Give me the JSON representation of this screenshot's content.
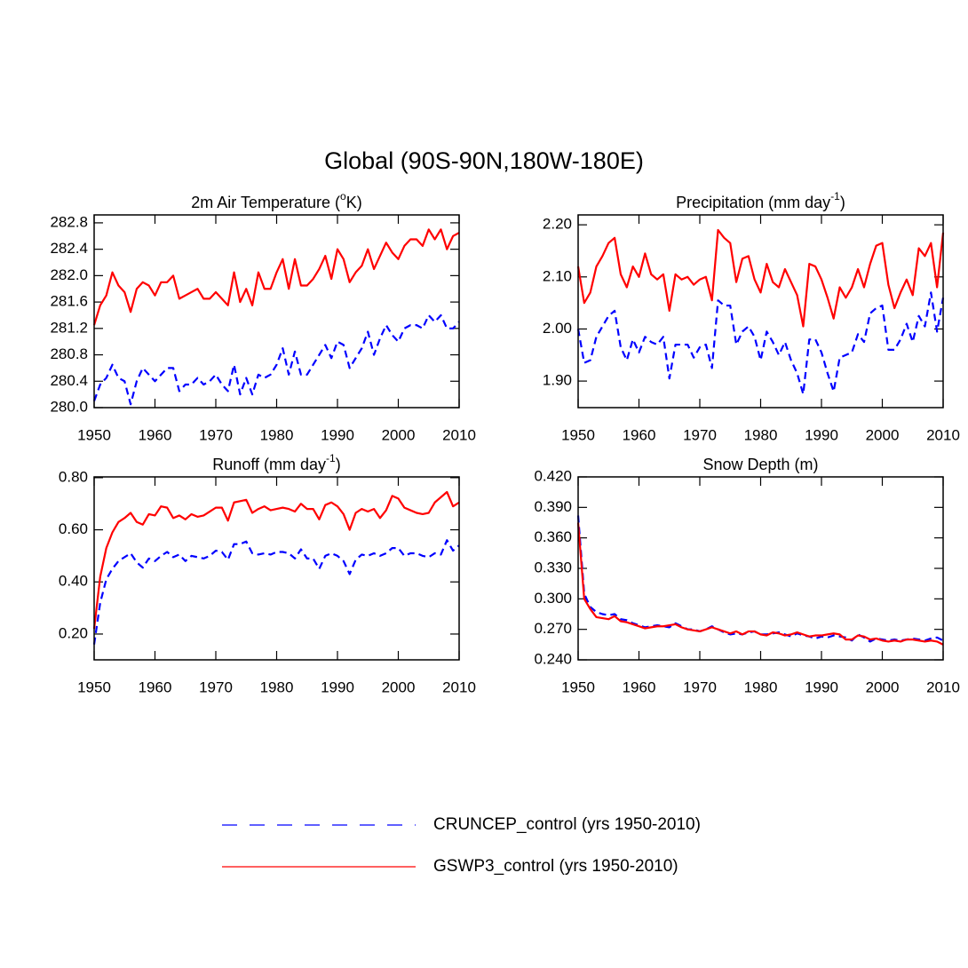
{
  "title": "Global (90S-90N,180W-180E)",
  "legend": [
    {
      "name": "CRUNCEP_control (yrs 1950-2010)",
      "color": "#0000ff",
      "dash": true
    },
    {
      "name": "GSWP3_control (yrs 1950-2010)",
      "color": "#ff0000",
      "dash": false
    }
  ],
  "chart_data": [
    {
      "type": "line",
      "title_parts": [
        "2m Air Temperature (",
        "o",
        "K)"
      ],
      "x": [
        1950,
        1951,
        1952,
        1953,
        1954,
        1955,
        1956,
        1957,
        1958,
        1959,
        1960,
        1961,
        1962,
        1963,
        1964,
        1965,
        1966,
        1967,
        1968,
        1969,
        1970,
        1971,
        1972,
        1973,
        1974,
        1975,
        1976,
        1977,
        1978,
        1979,
        1980,
        1981,
        1982,
        1983,
        1984,
        1985,
        1986,
        1987,
        1988,
        1989,
        1990,
        1991,
        1992,
        1993,
        1994,
        1995,
        1996,
        1997,
        1998,
        1999,
        2000,
        2001,
        2002,
        2003,
        2004,
        2005,
        2006,
        2007,
        2008,
        2009,
        2010
      ],
      "xlim": [
        1950,
        2010
      ],
      "xticks": [
        1950,
        1960,
        1970,
        1980,
        1990,
        2000,
        2010
      ],
      "ylim": [
        280.0,
        282.92
      ],
      "yticks": [
        {
          "value": 280,
          "label": "280.0"
        },
        280.4,
        280.8,
        281.2,
        281.6,
        {
          "value": 282,
          "label": "282.0"
        },
        282.4,
        282.8
      ],
      "series": [
        {
          "color": "#0000ff",
          "dash": true,
          "values": [
            280.1,
            280.35,
            280.45,
            280.65,
            280.45,
            280.4,
            280.05,
            280.4,
            280.6,
            280.5,
            280.4,
            280.5,
            280.6,
            280.6,
            280.25,
            280.35,
            280.35,
            280.45,
            280.35,
            280.4,
            280.5,
            280.35,
            280.25,
            280.65,
            280.2,
            280.45,
            280.2,
            280.5,
            280.45,
            280.5,
            280.65,
            280.9,
            280.5,
            280.85,
            280.5,
            280.5,
            280.65,
            280.8,
            280.95,
            280.75,
            281.0,
            280.95,
            280.6,
            280.75,
            280.9,
            281.15,
            280.8,
            281.05,
            281.25,
            281.1,
            281.0,
            281.2,
            281.25,
            281.25,
            281.2,
            281.4,
            281.3,
            281.4,
            281.2,
            281.2,
            281.3
          ]
        },
        {
          "color": "#ff0000",
          "dash": false,
          "values": [
            281.25,
            281.55,
            281.7,
            282.05,
            281.85,
            281.75,
            281.45,
            281.8,
            281.9,
            281.85,
            281.7,
            281.9,
            281.9,
            282.0,
            281.65,
            281.7,
            281.75,
            281.8,
            281.65,
            281.65,
            281.75,
            281.65,
            281.55,
            282.05,
            281.6,
            281.8,
            281.55,
            282.05,
            281.8,
            281.8,
            282.05,
            282.25,
            281.8,
            282.25,
            281.85,
            281.85,
            281.95,
            282.1,
            282.3,
            281.95,
            282.4,
            282.25,
            281.9,
            282.05,
            282.15,
            282.4,
            282.1,
            282.3,
            282.5,
            282.35,
            282.25,
            282.45,
            282.55,
            282.55,
            282.45,
            282.7,
            282.55,
            282.7,
            282.4,
            282.6,
            282.65
          ]
        }
      ]
    },
    {
      "type": "line",
      "title_parts": [
        "Precipitation (mm day",
        "-1",
        ")"
      ],
      "x": [
        1950,
        1951,
        1952,
        1953,
        1954,
        1955,
        1956,
        1957,
        1958,
        1959,
        1960,
        1961,
        1962,
        1963,
        1964,
        1965,
        1966,
        1967,
        1968,
        1969,
        1970,
        1971,
        1972,
        1973,
        1974,
        1975,
        1976,
        1977,
        1978,
        1979,
        1980,
        1981,
        1982,
        1983,
        1984,
        1985,
        1986,
        1987,
        1988,
        1989,
        1990,
        1991,
        1992,
        1993,
        1994,
        1995,
        1996,
        1997,
        1998,
        1999,
        2000,
        2001,
        2002,
        2003,
        2004,
        2005,
        2006,
        2007,
        2008,
        2009,
        2010
      ],
      "xlim": [
        1950,
        2010
      ],
      "xticks": [
        1950,
        1960,
        1970,
        1980,
        1990,
        2000,
        2010
      ],
      "ylim": [
        1.849,
        2.219
      ],
      "yticks": [
        {
          "value": 1.9,
          "label": "1.90"
        },
        {
          "value": 2.0,
          "label": "2.00"
        },
        {
          "value": 2.1,
          "label": "2.10"
        },
        {
          "value": 2.2,
          "label": "2.20"
        }
      ],
      "series": [
        {
          "color": "#0000ff",
          "dash": true,
          "values": [
            2.0,
            1.935,
            1.94,
            1.985,
            2.005,
            2.025,
            2.035,
            1.965,
            1.94,
            1.98,
            1.955,
            1.985,
            1.975,
            1.97,
            1.985,
            1.905,
            1.97,
            1.97,
            1.97,
            1.945,
            1.965,
            1.97,
            1.925,
            2.055,
            2.045,
            2.045,
            1.97,
            1.995,
            2.005,
            1.985,
            1.94,
            1.995,
            1.975,
            1.95,
            1.975,
            1.94,
            1.915,
            1.875,
            1.98,
            1.98,
            1.955,
            1.915,
            1.88,
            1.945,
            1.95,
            1.955,
            1.99,
            1.975,
            2.03,
            2.04,
            2.045,
            1.96,
            1.96,
            1.98,
            2.01,
            1.975,
            2.025,
            2.005,
            2.07,
            1.995,
            2.06
          ]
        },
        {
          "color": "#ff0000",
          "dash": false,
          "values": [
            2.12,
            2.05,
            2.07,
            2.12,
            2.14,
            2.165,
            2.175,
            2.105,
            2.08,
            2.12,
            2.1,
            2.145,
            2.105,
            2.095,
            2.105,
            2.035,
            2.105,
            2.095,
            2.1,
            2.085,
            2.095,
            2.1,
            2.055,
            2.19,
            2.175,
            2.165,
            2.09,
            2.135,
            2.14,
            2.095,
            2.07,
            2.125,
            2.09,
            2.08,
            2.115,
            2.09,
            2.065,
            2.005,
            2.125,
            2.12,
            2.095,
            2.06,
            2.02,
            2.08,
            2.06,
            2.08,
            2.115,
            2.08,
            2.125,
            2.16,
            2.165,
            2.085,
            2.04,
            2.07,
            2.095,
            2.065,
            2.155,
            2.14,
            2.165,
            2.08,
            2.185
          ]
        }
      ]
    },
    {
      "type": "line",
      "title_parts": [
        "Runoff (mm day",
        "-1",
        ")"
      ],
      "x": [
        1950,
        1951,
        1952,
        1953,
        1954,
        1955,
        1956,
        1957,
        1958,
        1959,
        1960,
        1961,
        1962,
        1963,
        1964,
        1965,
        1966,
        1967,
        1968,
        1969,
        1970,
        1971,
        1972,
        1973,
        1974,
        1975,
        1976,
        1977,
        1978,
        1979,
        1980,
        1981,
        1982,
        1983,
        1984,
        1985,
        1986,
        1987,
        1988,
        1989,
        1990,
        1991,
        1992,
        1993,
        1994,
        1995,
        1996,
        1997,
        1998,
        1999,
        2000,
        2001,
        2002,
        2003,
        2004,
        2005,
        2006,
        2007,
        2008,
        2009,
        2010
      ],
      "xlim": [
        1950,
        2010
      ],
      "xticks": [
        1950,
        1960,
        1970,
        1980,
        1990,
        2000,
        2010
      ],
      "ylim": [
        0.101,
        0.803
      ],
      "yticks": [
        {
          "value": 0.2,
          "label": "0.20"
        },
        {
          "value": 0.4,
          "label": "0.40"
        },
        {
          "value": 0.6,
          "label": "0.60"
        },
        {
          "value": 0.8,
          "label": "0.80"
        }
      ],
      "series": [
        {
          "color": "#0000ff",
          "dash": true,
          "values": [
            0.16,
            0.32,
            0.41,
            0.45,
            0.48,
            0.495,
            0.51,
            0.475,
            0.455,
            0.49,
            0.48,
            0.5,
            0.515,
            0.495,
            0.505,
            0.48,
            0.5,
            0.495,
            0.49,
            0.5,
            0.52,
            0.515,
            0.485,
            0.545,
            0.545,
            0.555,
            0.51,
            0.505,
            0.51,
            0.505,
            0.515,
            0.515,
            0.51,
            0.49,
            0.525,
            0.49,
            0.49,
            0.45,
            0.5,
            0.51,
            0.5,
            0.48,
            0.43,
            0.485,
            0.505,
            0.5,
            0.51,
            0.5,
            0.51,
            0.53,
            0.53,
            0.5,
            0.51,
            0.51,
            0.5,
            0.495,
            0.51,
            0.505,
            0.56,
            0.52,
            0.54
          ]
        },
        {
          "color": "#ff0000",
          "dash": false,
          "values": [
            0.22,
            0.42,
            0.53,
            0.59,
            0.63,
            0.645,
            0.665,
            0.63,
            0.62,
            0.66,
            0.655,
            0.69,
            0.685,
            0.645,
            0.655,
            0.64,
            0.66,
            0.65,
            0.655,
            0.67,
            0.685,
            0.685,
            0.635,
            0.705,
            0.71,
            0.715,
            0.665,
            0.68,
            0.69,
            0.675,
            0.68,
            0.685,
            0.68,
            0.67,
            0.7,
            0.68,
            0.68,
            0.64,
            0.695,
            0.705,
            0.69,
            0.66,
            0.6,
            0.665,
            0.68,
            0.67,
            0.68,
            0.645,
            0.675,
            0.73,
            0.72,
            0.685,
            0.675,
            0.665,
            0.66,
            0.665,
            0.705,
            0.725,
            0.745,
            0.69,
            0.705
          ]
        }
      ]
    },
    {
      "type": "line",
      "title_parts": [
        "Snow Depth (m)"
      ],
      "x": [
        1950,
        1951,
        1952,
        1953,
        1954,
        1955,
        1956,
        1957,
        1958,
        1959,
        1960,
        1961,
        1962,
        1963,
        1964,
        1965,
        1966,
        1967,
        1968,
        1969,
        1970,
        1971,
        1972,
        1973,
        1974,
        1975,
        1976,
        1977,
        1978,
        1979,
        1980,
        1981,
        1982,
        1983,
        1984,
        1985,
        1986,
        1987,
        1988,
        1989,
        1990,
        1991,
        1992,
        1993,
        1994,
        1995,
        1996,
        1997,
        1998,
        1999,
        2000,
        2001,
        2002,
        2003,
        2004,
        2005,
        2006,
        2007,
        2008,
        2009,
        2010
      ],
      "xlim": [
        1950,
        2010
      ],
      "xticks": [
        1950,
        1960,
        1970,
        1980,
        1990,
        2000,
        2010
      ],
      "ylim": [
        0.24,
        0.42
      ],
      "yticks": [
        {
          "value": 0.24,
          "label": "0.240"
        },
        {
          "value": 0.27,
          "label": "0.270"
        },
        {
          "value": 0.3,
          "label": "0.300"
        },
        {
          "value": 0.33,
          "label": "0.330"
        },
        {
          "value": 0.36,
          "label": "0.360"
        },
        {
          "value": 0.39,
          "label": "0.390"
        },
        {
          "value": 0.42,
          "label": "0.420"
        }
      ],
      "series": [
        {
          "color": "#0000ff",
          "dash": true,
          "values": [
            0.382,
            0.305,
            0.292,
            0.287,
            0.285,
            0.284,
            0.285,
            0.28,
            0.279,
            0.276,
            0.274,
            0.272,
            0.273,
            0.274,
            0.273,
            0.272,
            0.276,
            0.273,
            0.27,
            0.27,
            0.268,
            0.27,
            0.273,
            0.27,
            0.267,
            0.265,
            0.266,
            0.265,
            0.267,
            0.268,
            0.265,
            0.265,
            0.266,
            0.267,
            0.265,
            0.263,
            0.266,
            0.264,
            0.263,
            0.261,
            0.263,
            0.262,
            0.264,
            0.263,
            0.262,
            0.259,
            0.265,
            0.262,
            0.258,
            0.261,
            0.26,
            0.259,
            0.26,
            0.259,
            0.26,
            0.261,
            0.26,
            0.259,
            0.261,
            0.262,
            0.259
          ]
        },
        {
          "color": "#ff0000",
          "dash": false,
          "values": [
            0.375,
            0.3,
            0.29,
            0.282,
            0.281,
            0.28,
            0.283,
            0.278,
            0.277,
            0.275,
            0.273,
            0.271,
            0.272,
            0.273,
            0.273,
            0.274,
            0.275,
            0.272,
            0.27,
            0.269,
            0.268,
            0.27,
            0.272,
            0.27,
            0.268,
            0.266,
            0.268,
            0.265,
            0.268,
            0.268,
            0.265,
            0.264,
            0.267,
            0.266,
            0.264,
            0.265,
            0.267,
            0.265,
            0.263,
            0.264,
            0.264,
            0.265,
            0.266,
            0.265,
            0.26,
            0.26,
            0.264,
            0.263,
            0.26,
            0.261,
            0.259,
            0.258,
            0.259,
            0.258,
            0.26,
            0.26,
            0.259,
            0.258,
            0.259,
            0.258,
            0.255
          ]
        }
      ]
    }
  ]
}
